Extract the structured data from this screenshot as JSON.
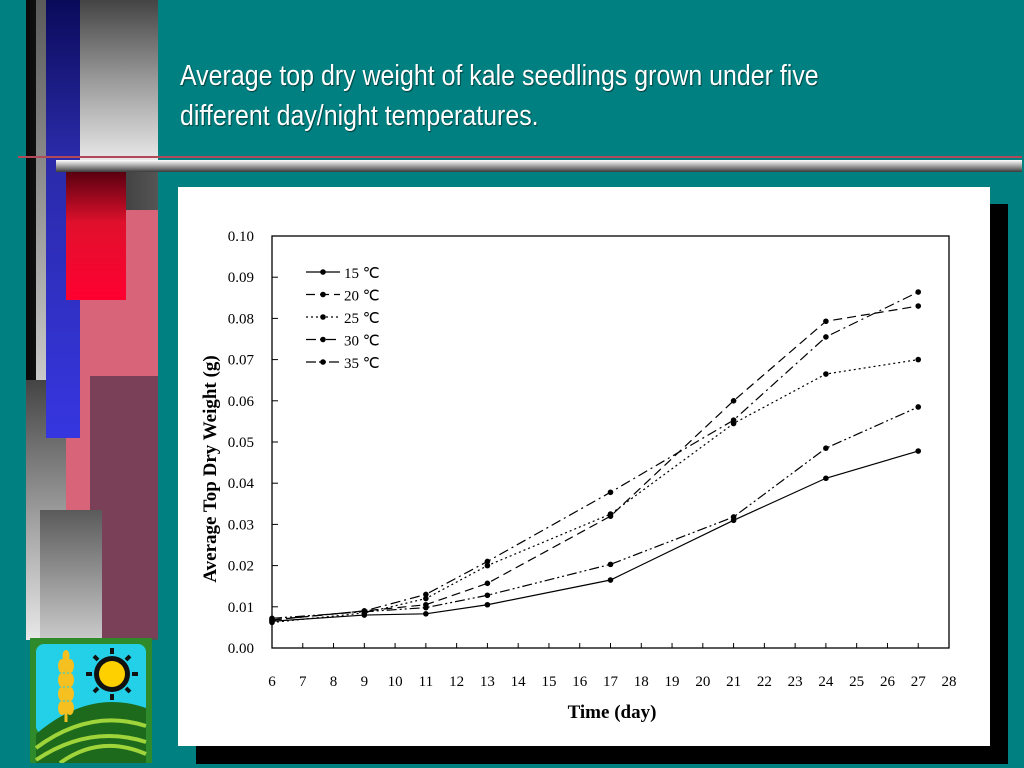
{
  "slide": {
    "title_line1": "Average top dry weight of kale seedlings grown under five",
    "title_line2": "different day/night temperatures."
  },
  "logo": {
    "icons": [
      "wheat-icon",
      "sun-icon",
      "field-icon"
    ]
  },
  "colors": {
    "background": "#008080",
    "chart_bg": "#ffffff",
    "title_text": "#ffffff"
  },
  "chart_data": {
    "type": "line",
    "title": "",
    "xlabel": "Time (day)",
    "ylabel": "Average Top Dry Weight (g)",
    "xlim": [
      6,
      28
    ],
    "ylim": [
      0.0,
      0.1
    ],
    "xticks": [
      6,
      7,
      8,
      9,
      10,
      11,
      12,
      13,
      14,
      15,
      16,
      17,
      18,
      19,
      20,
      21,
      22,
      23,
      24,
      25,
      26,
      27,
      28
    ],
    "yticks": [
      "0.00",
      "0.01",
      "0.02",
      "0.03",
      "0.04",
      "0.05",
      "0.06",
      "0.07",
      "0.08",
      "0.09",
      "0.10"
    ],
    "x": [
      6,
      9,
      11,
      13,
      17,
      21,
      24,
      27
    ],
    "grid": false,
    "legend_position": "top-left",
    "series": [
      {
        "name": "15 ℃",
        "dash": "solid",
        "values": [
          0.0065,
          0.008,
          0.0083,
          0.0105,
          0.0165,
          0.031,
          0.0412,
          0.0478
        ]
      },
      {
        "name": "20 ℃",
        "dash": "dashed",
        "values": [
          0.0068,
          0.009,
          0.0105,
          0.0157,
          0.032,
          0.06,
          0.0793,
          0.083
        ]
      },
      {
        "name": "25 ℃",
        "dash": "dotted",
        "values": [
          0.0062,
          0.0085,
          0.012,
          0.02,
          0.0325,
          0.0545,
          0.0665,
          0.07
        ]
      },
      {
        "name": "30 ℃",
        "dash": "dash-dot",
        "values": [
          0.0068,
          0.009,
          0.013,
          0.021,
          0.0378,
          0.0553,
          0.0755,
          0.0864
        ]
      },
      {
        "name": "35 ℃",
        "dash": "dash-dot-dot",
        "values": [
          0.0072,
          0.0088,
          0.0098,
          0.0128,
          0.0203,
          0.0318,
          0.0485,
          0.0585
        ]
      }
    ]
  }
}
